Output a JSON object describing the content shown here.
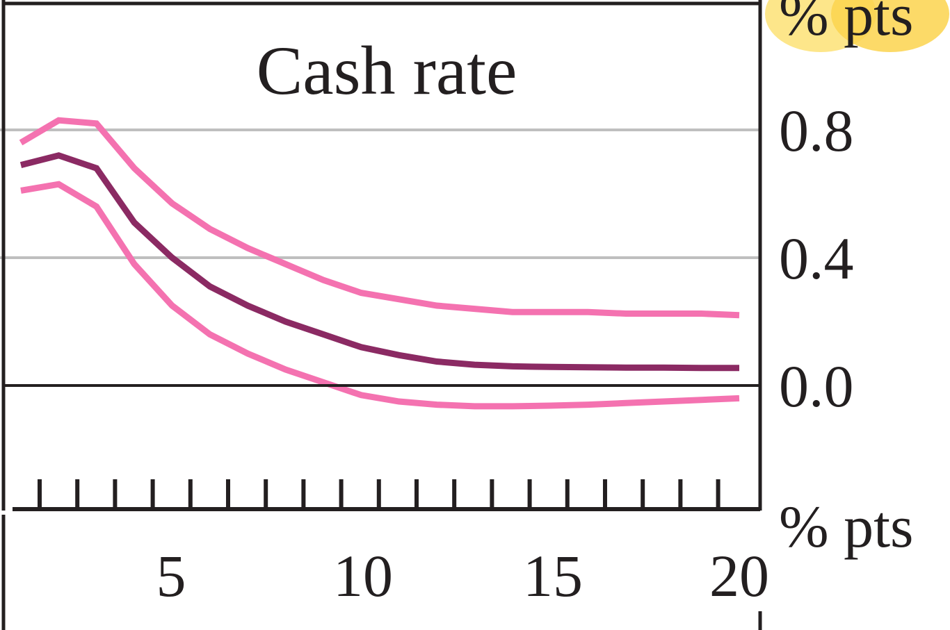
{
  "chart_data": {
    "type": "line",
    "title": "Cash rate",
    "y_unit_top": "% pts",
    "y_unit_bottom": "% pts",
    "x": [
      1,
      2,
      3,
      4,
      5,
      6,
      7,
      8,
      9,
      10,
      11,
      12,
      13,
      14,
      15,
      16,
      17,
      18,
      19,
      20
    ],
    "xlim": [
      0.5,
      20.5
    ],
    "ylim": [
      -0.4,
      1.2
    ],
    "x_tick_labels": [
      "5",
      "10",
      "15",
      "20"
    ],
    "x_tick_values": [
      5,
      10,
      15,
      20
    ],
    "y_tick_labels": [
      "0.8",
      "0.4",
      "0.0"
    ],
    "y_tick_values": [
      0.8,
      0.4,
      0.0
    ],
    "grid": true,
    "legend": "none",
    "series": [
      {
        "color": "#f472b0",
        "values": [
          0.76,
          0.83,
          0.82,
          0.68,
          0.57,
          0.49,
          0.43,
          0.38,
          0.33,
          0.29,
          0.27,
          0.25,
          0.24,
          0.23,
          0.23,
          0.23,
          0.225,
          0.225,
          0.225,
          0.22
        ]
      },
      {
        "color": "#8b2a63",
        "values": [
          0.69,
          0.72,
          0.68,
          0.51,
          0.4,
          0.31,
          0.25,
          0.2,
          0.16,
          0.12,
          0.095,
          0.075,
          0.065,
          0.06,
          0.058,
          0.057,
          0.056,
          0.056,
          0.055,
          0.055
        ]
      },
      {
        "color": "#f472b0",
        "values": [
          0.61,
          0.63,
          0.56,
          0.38,
          0.25,
          0.16,
          0.1,
          0.05,
          0.01,
          -0.03,
          -0.05,
          -0.06,
          -0.065,
          -0.065,
          -0.063,
          -0.06,
          -0.055,
          -0.05,
          -0.045,
          -0.04
        ]
      }
    ],
    "colors": {
      "gridline": "#bfbfbf",
      "axis": "#231f20",
      "unit_highlight": "#fde68a"
    }
  }
}
